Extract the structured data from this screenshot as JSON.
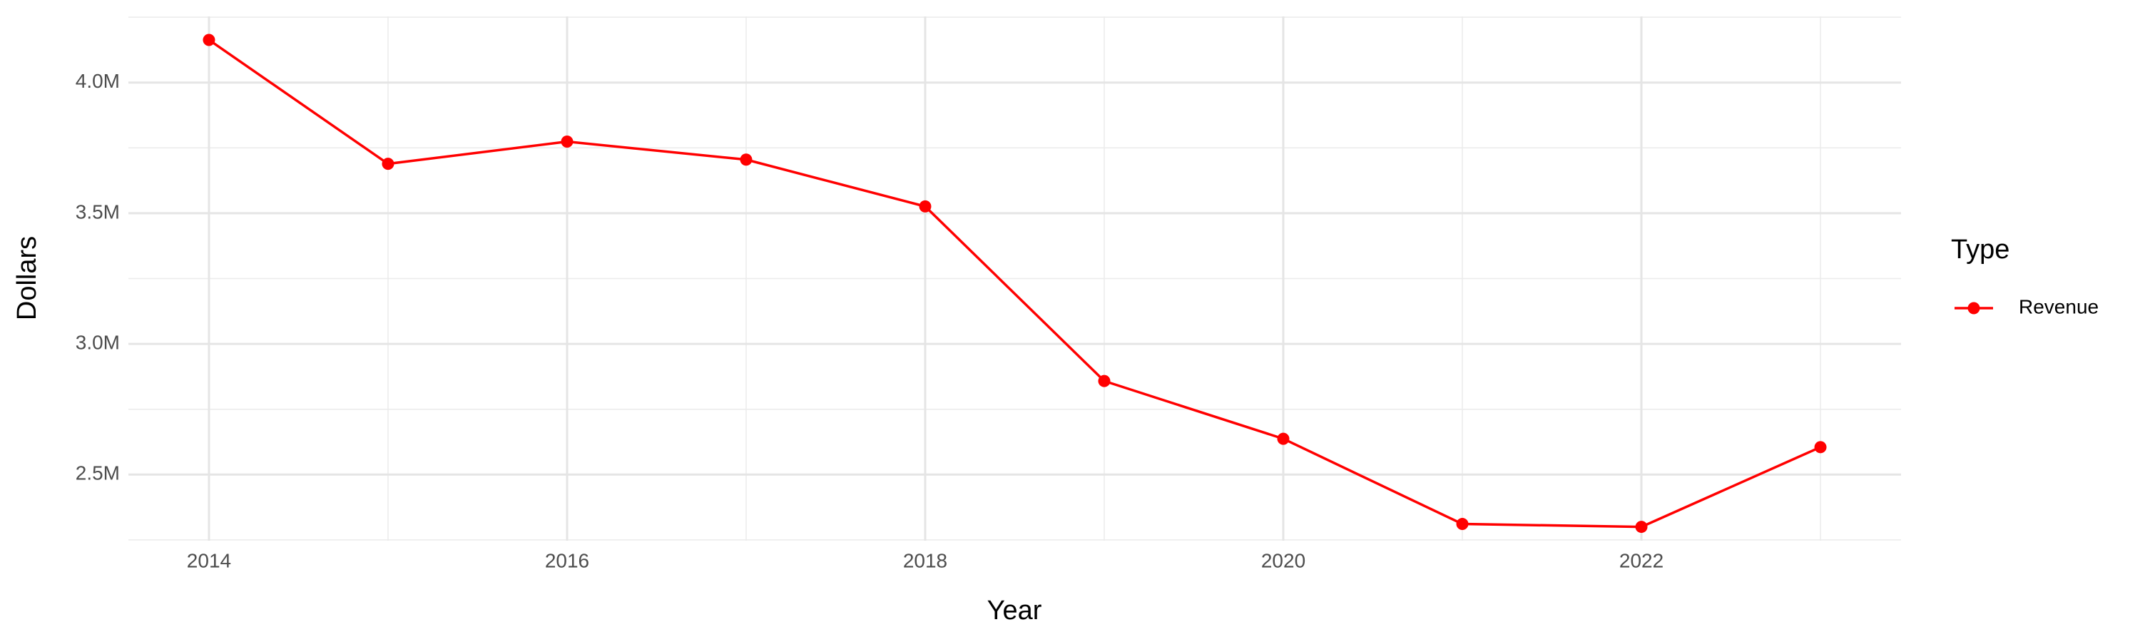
{
  "chart_data": {
    "type": "line",
    "x_label": "Year",
    "y_label": "Dollars",
    "x": [
      2014,
      2015,
      2016,
      2017,
      2018,
      2019,
      2020,
      2021,
      2022,
      2023
    ],
    "series": [
      {
        "name": "Revenue",
        "color": "#ff0000",
        "values": [
          4163000,
          3689000,
          3774000,
          3705000,
          3526000,
          2858000,
          2637000,
          2311000,
          2300000,
          2605000
        ]
      }
    ],
    "legend_title": "Type",
    "legend": "right",
    "xlim": [
      2013.55,
      2023.45
    ],
    "xticks": [
      2014,
      2016,
      2018,
      2020,
      2022
    ],
    "ylim": [
      2247000,
      4253000
    ],
    "yticks": [
      {
        "value": 2500000,
        "label": "2.5M"
      },
      {
        "value": 3000000,
        "label": "3.0M"
      },
      {
        "value": 3500000,
        "label": "3.5M"
      },
      {
        "value": 4000000,
        "label": "4.0M"
      }
    ],
    "grid": true
  }
}
